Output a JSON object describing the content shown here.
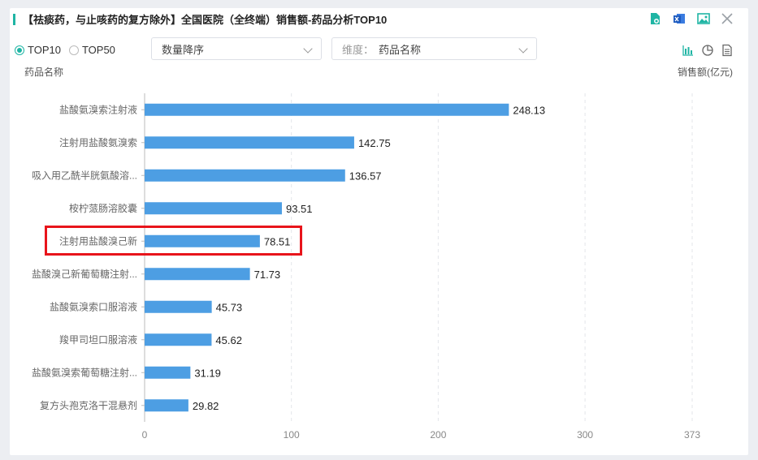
{
  "header": {
    "title": "【祛痰药，与止咳药的复方除外】全国医院（全终端）销售额-药品分析TOP10",
    "toolbar_icons": [
      "refresh-doc-icon",
      "excel-export-icon",
      "image-export-icon",
      "close-icon"
    ]
  },
  "controls": {
    "top_options": [
      {
        "label": "TOP10",
        "checked": true
      },
      {
        "label": "TOP50",
        "checked": false
      }
    ],
    "sort_select": {
      "value": "数量降序"
    },
    "dimension_select": {
      "prefix": "维度：",
      "value": "药品名称"
    },
    "chart_types": [
      "bar-chart-icon",
      "pie-chart-icon",
      "table-icon"
    ]
  },
  "chart_data": {
    "type": "bar",
    "orientation": "horizontal",
    "ylabel": "药品名称",
    "xlabel": "销售额(亿元)",
    "xlim": [
      0,
      373
    ],
    "xticks": [
      0,
      100,
      200,
      300,
      373
    ],
    "grid": true,
    "bar_color": "#4d9ee3",
    "highlight_color": "#e8141b",
    "categories": [
      "盐酸氨溴索注射液",
      "注射用盐酸氨溴索",
      "吸入用乙酰半胱氨酸溶...",
      "桉柠蒎肠溶胶囊",
      "注射用盐酸溴己新",
      "盐酸溴己新葡萄糖注射...",
      "盐酸氨溴索口服溶液",
      "羧甲司坦口服溶液",
      "盐酸氨溴索葡萄糖注射...",
      "复方头孢克洛干混悬剂"
    ],
    "values": [
      248.13,
      142.75,
      136.57,
      93.51,
      78.51,
      71.73,
      45.73,
      45.62,
      31.19,
      29.82
    ],
    "value_labels": [
      "248.13",
      "142.75",
      "136.57",
      "93.51",
      "78.51",
      "71.73",
      "45.73",
      "45.62",
      "31.19",
      "29.82"
    ],
    "highlighted_index": 4
  }
}
